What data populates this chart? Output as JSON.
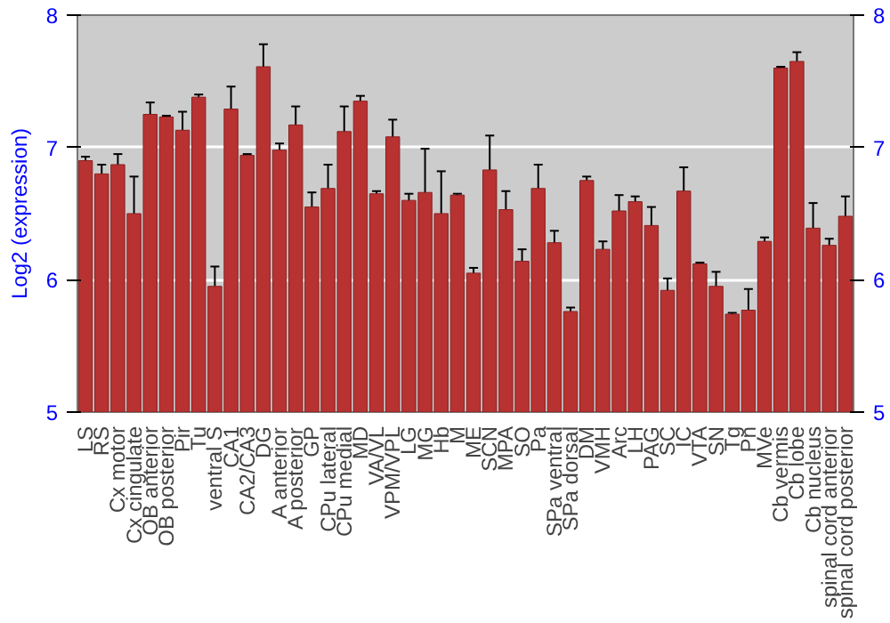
{
  "chart_data": {
    "type": "bar",
    "ylabel": "Log2 (expression)",
    "categories": [
      "LS",
      "RS",
      "Cx motor",
      "Cx cingulate",
      "OB anterior",
      "OB posterior",
      "Pir",
      "Tu",
      "ventral S",
      "CA1",
      "CA2/CA3",
      "DG",
      "A anterior",
      "A posterior",
      "GP",
      "CPu lateral",
      "CPu medial",
      "MD",
      "VA/VL",
      "VPM/VPL",
      "LG",
      "MG",
      "Hb",
      "M",
      "ME",
      "SCN",
      "MPA",
      "SO",
      "Pa",
      "SPa ventral",
      "SPa dorsal",
      "DM",
      "VMH",
      "Arc",
      "LH",
      "PAG",
      "SC",
      "IC",
      "VTA",
      "SN",
      "Tg",
      "Pn",
      "MVe",
      "Cb vermis",
      "Cb lobe",
      "Cb nucleus",
      "spinal cord anterior",
      "spinal cord posterior"
    ],
    "values": [
      6.9,
      6.8,
      6.87,
      6.5,
      7.25,
      7.23,
      7.13,
      7.38,
      5.95,
      7.29,
      6.94,
      7.61,
      6.98,
      7.17,
      6.55,
      6.69,
      7.12,
      7.35,
      6.65,
      7.08,
      6.6,
      6.66,
      6.5,
      6.64,
      6.05,
      6.83,
      6.53,
      6.14,
      6.69,
      6.28,
      5.76,
      6.75,
      6.23,
      6.52,
      6.59,
      6.41,
      5.92,
      6.67,
      6.12,
      5.95,
      5.74,
      5.77,
      6.29,
      7.6,
      7.65,
      6.39,
      6.26,
      6.48
    ],
    "errors": [
      0.03,
      0.07,
      0.08,
      0.28,
      0.09,
      0.01,
      0.14,
      0.02,
      0.15,
      0.17,
      0.01,
      0.17,
      0.05,
      0.14,
      0.11,
      0.18,
      0.19,
      0.04,
      0.02,
      0.13,
      0.05,
      0.33,
      0.32,
      0.01,
      0.04,
      0.26,
      0.14,
      0.09,
      0.18,
      0.09,
      0.03,
      0.03,
      0.06,
      0.12,
      0.04,
      0.14,
      0.09,
      0.18,
      0.01,
      0.11,
      0.01,
      0.16,
      0.03,
      0.01,
      0.07,
      0.19,
      0.05,
      0.15
    ],
    "color": "#b83232",
    "ylim": [
      5,
      8
    ],
    "yticks": [
      5,
      6,
      7,
      8
    ],
    "y2lim": [
      5,
      8
    ],
    "y2ticks": [
      5,
      6,
      7,
      8
    ],
    "grid": "y"
  }
}
